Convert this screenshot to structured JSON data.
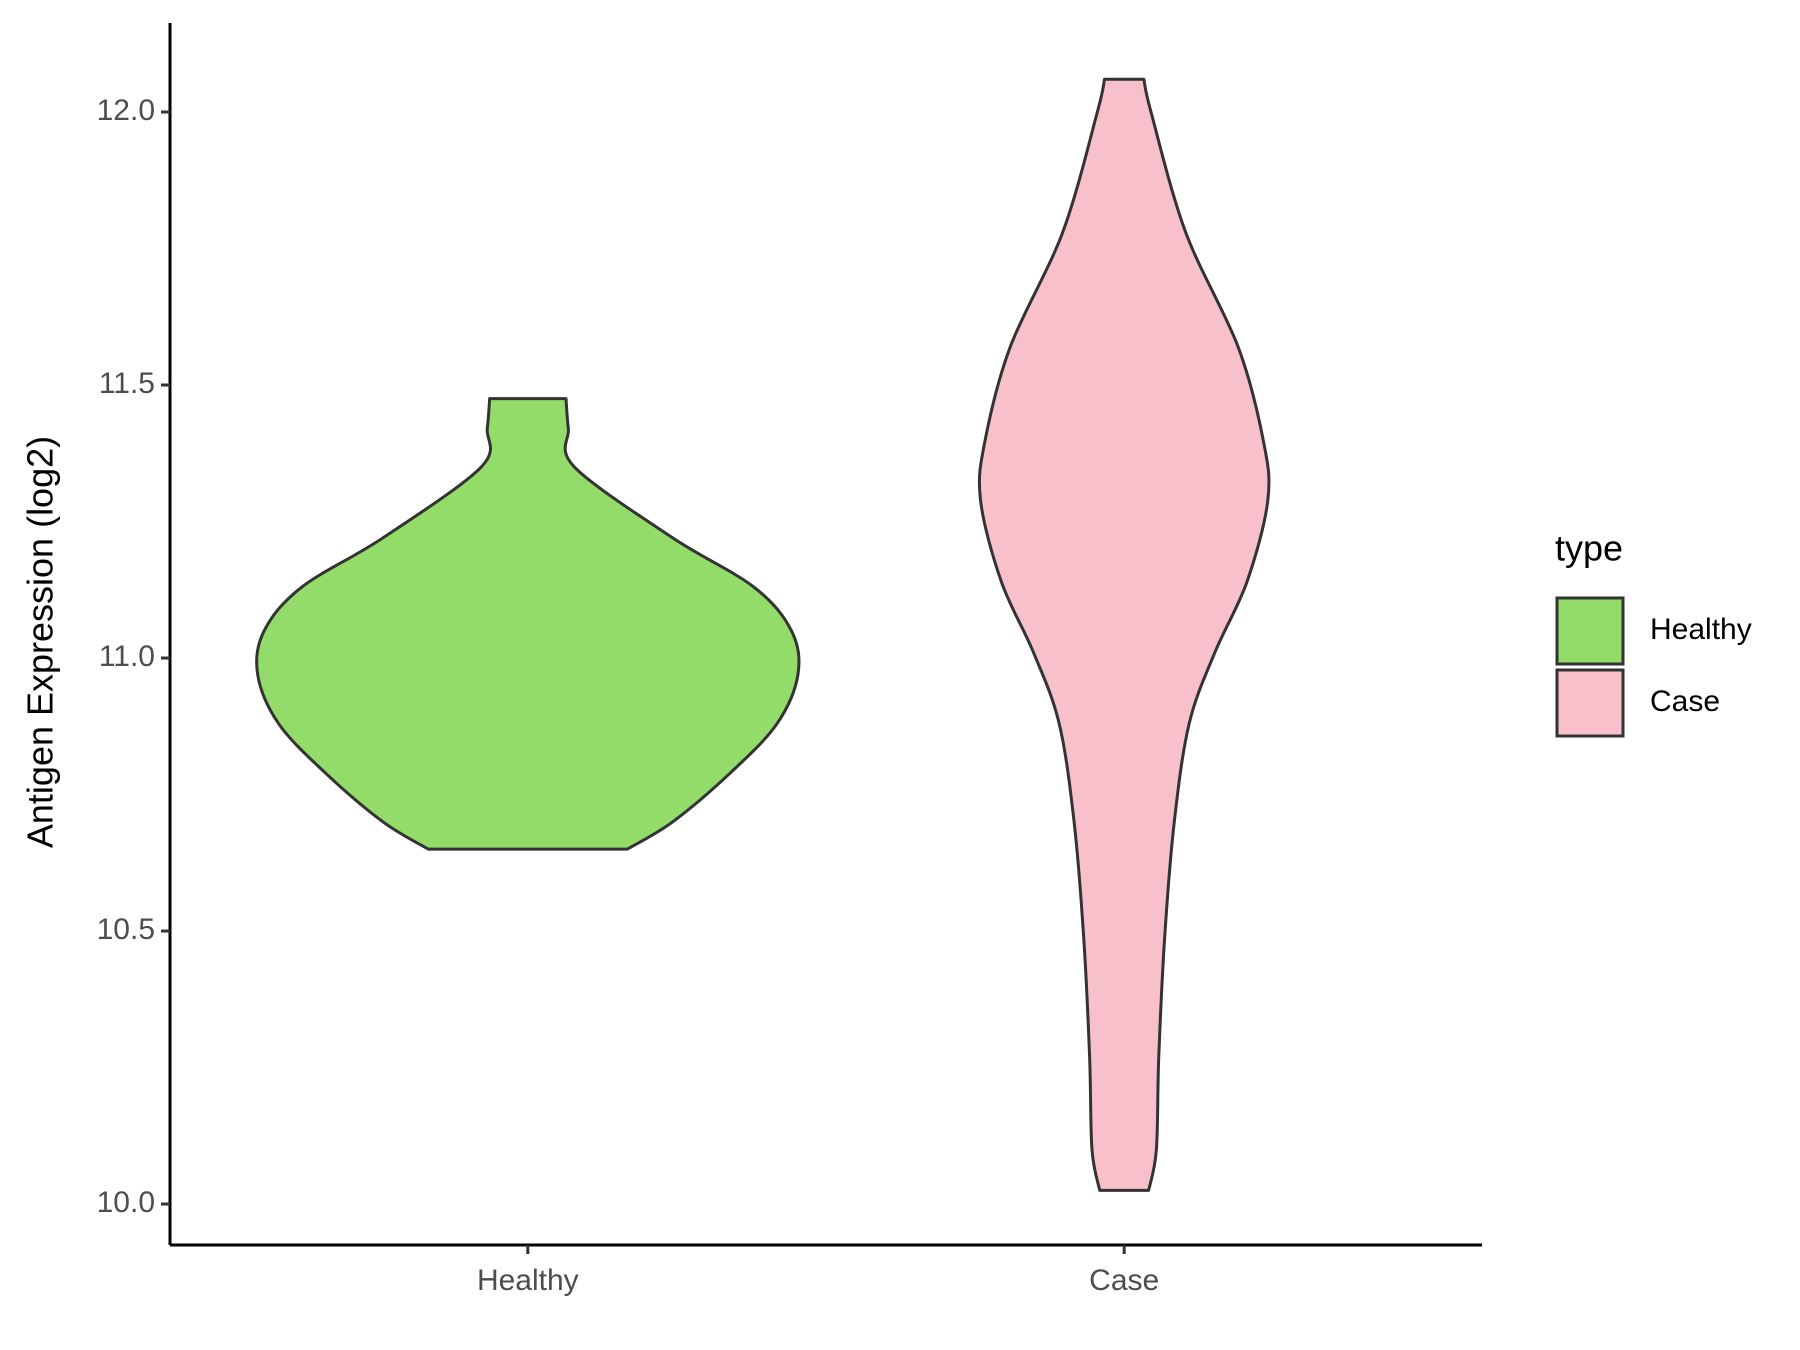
{
  "chart_data": {
    "type": "violin",
    "ylabel": "Antigen Expression (log2)",
    "categories": [
      "Healthy",
      "Case"
    ],
    "series": [
      {
        "name": "Healthy",
        "color": "#93dc6a",
        "y": [
          10.65,
          10.7,
          10.79,
          10.88,
          10.97,
          11.05,
          11.13,
          11.22,
          11.35,
          11.42,
          11.475
        ],
        "density": [
          0.167,
          0.243,
          0.34,
          0.418,
          0.453,
          0.442,
          0.379,
          0.243,
          0.078,
          0.068,
          0.064
        ]
      },
      {
        "name": "Case",
        "color": "#f8c0cb",
        "y": [
          10.025,
          10.1,
          10.27,
          10.49,
          10.7,
          10.88,
          11.01,
          11.14,
          11.29,
          11.4,
          11.57,
          11.78,
          12.0,
          12.06
        ],
        "density": [
          0.041,
          0.054,
          0.058,
          0.068,
          0.084,
          0.109,
          0.152,
          0.206,
          0.241,
          0.233,
          0.191,
          0.103,
          0.045,
          0.033
        ]
      }
    ],
    "ylim": [
      9.925,
      12.163
    ],
    "yticks": [
      {
        "value": 10,
        "label": "10.0"
      },
      {
        "value": 10.5,
        "label": "10.5"
      },
      {
        "value": 11,
        "label": "11.0"
      },
      {
        "value": 11.5,
        "label": "11.5"
      },
      {
        "value": 12,
        "label": "12.0"
      }
    ],
    "legend_title": "type",
    "legend_position": "right"
  }
}
